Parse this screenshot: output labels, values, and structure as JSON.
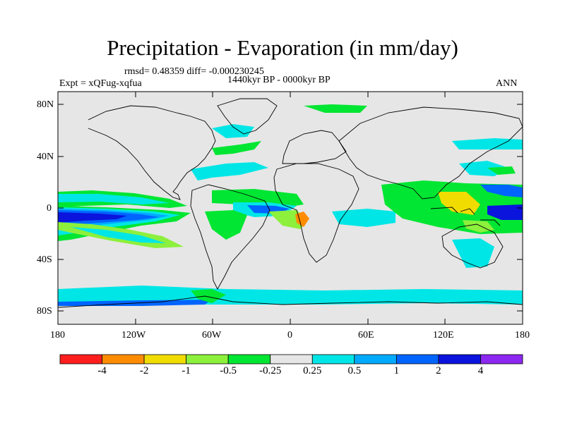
{
  "title": "Precipitation - Evaporation (in mm/day)",
  "stats": "rmsd= 0.48359 diff= -0.000230245",
  "period": "1440kyr BP - 0000kyr BP",
  "experiment": "Expt = xQFug-xqfua",
  "season": "ANN",
  "y_ticks": [
    "80N",
    "40N",
    "0",
    "40S",
    "80S"
  ],
  "x_ticks": [
    "180",
    "120W",
    "60W",
    "0",
    "60E",
    "120E",
    "180"
  ],
  "colorbar": {
    "colors": [
      "#ff1e1e",
      "#ff8c00",
      "#f0dc00",
      "#8cf03c",
      "#00e632",
      "#e6e6e6",
      "#00e6e6",
      "#00aaff",
      "#0064ff",
      "#0a14dc",
      "#8c28f0"
    ],
    "labels": [
      "-4",
      "-2",
      "-1",
      "-0.5",
      "-0.25",
      "0.25",
      "0.5",
      "1",
      "2",
      "4"
    ]
  },
  "map_colors": {
    "background": "#e6e6e6",
    "coast": "#000000"
  }
}
